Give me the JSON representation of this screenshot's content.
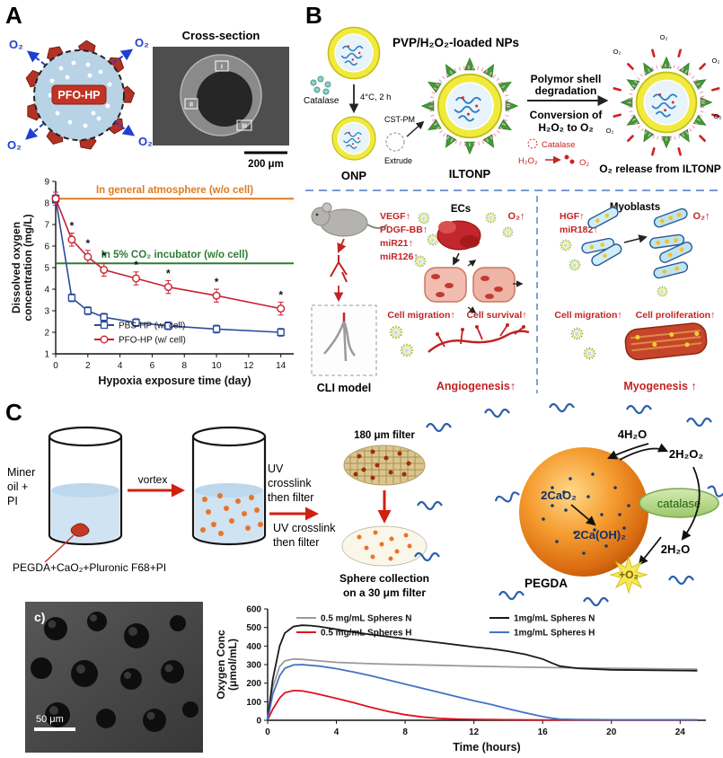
{
  "panels": {
    "a": {
      "label": "A"
    },
    "b": {
      "label": "B"
    },
    "c": {
      "label": "C"
    }
  },
  "panel_a": {
    "sphere_label": "PFO-HP",
    "o2": "O₂",
    "sem_title": "Cross-section",
    "sem_scale": "200 μm",
    "region_1": "I",
    "region_2": "II",
    "region_3": "III"
  },
  "panel_b": {
    "pvp_title": "PVP/H₂O₂-loaded NPs",
    "catalase": "Catalase",
    "condition": "4°C, 2 h",
    "cst_pm": "CST-PM",
    "extrude": "Extrude",
    "onp": "ONP",
    "iltonp": "ILTONP",
    "degrade_1": "Polymor shell",
    "degrade_2": "degradation",
    "convert_1": "Conversion of",
    "convert_2": "H₂O₂ to O₂",
    "catalase_2": "Catalase",
    "h2o2": "H₂O₂",
    "o2": "O₂",
    "o2_small": "O₂",
    "release_label": "O₂ release from ILTONP",
    "cli_model": "CLI model",
    "vegf": "VEGF↑",
    "pdgf": "PDGF-BB↑",
    "mir21": "miR21↑",
    "mir126": "miR126↑",
    "ecs": "ECs",
    "o2_up": "O₂↑",
    "cell_migration": "Cell migration↑",
    "cell_survival": "Cell survival↑",
    "angiogenesis": "Angiogenesis↑",
    "hgf": "HGF↑",
    "mir182": "miR182↑",
    "myoblasts": "Myoblasts",
    "cell_proliferation": "Cell proliferation↑",
    "myogenesis": "Myogenesis ↑"
  },
  "panel_c": {
    "miner_1": "Miner",
    "miner_2": "oil +",
    "miner_3": "PI",
    "mix_label": "PEGDA+CaO₂+Pluronic F68+PI",
    "vortex": "vortex",
    "uv_1": "UV",
    "uv_2": "crosslink",
    "uv_3": "then filter",
    "uv2_1": "UV crosslink",
    "uv2_2": "then filter",
    "filter_180": "180 μm filter",
    "collect_1": "Sphere collection",
    "collect_2": "on a 30 μm filter",
    "h2o_in": "4H₂O",
    "h2o2_out": "2H₂O₂",
    "cao2": "2CaO₂",
    "caoh2": "2Ca(OH)₂",
    "catalase": "catalase",
    "h2o_out": "2H₂O",
    "o2_out": "+O₂",
    "pegda": "PEGDA",
    "sem_label": "c)",
    "sem_scale": "50 μm"
  },
  "chart_data": [
    {
      "id": "dissolved-oxygen-vs-hypoxia-time",
      "type": "line",
      "xlabel": "Hypoxia exposure time (day)",
      "ylabel": "Dissolved oxygen concentration (mg/L)",
      "ylabel_lines": [
        "Dissolved oxygen",
        "concentration (mg/L)"
      ],
      "xlim": [
        0,
        14.8
      ],
      "ylim": [
        1,
        9
      ],
      "xticks": [
        0,
        2,
        4,
        6,
        8,
        10,
        12,
        14
      ],
      "yticks": [
        1,
        2,
        3,
        4,
        5,
        6,
        7,
        8,
        9
      ],
      "grid": false,
      "legend_position": "inside-bottom-left",
      "reference_lines": [
        {
          "y": 8.2,
          "label": "In general atmosphere (w/o cell)",
          "color": "#e07b20"
        },
        {
          "y": 5.2,
          "label": "In 5% CO₂ incubator (w/o cell)",
          "color": "#2e7d32"
        }
      ],
      "series": [
        {
          "name": "PBS-HP (w/ cell)",
          "color": "#2b4b9e",
          "marker": "square",
          "error_y": 0.18,
          "x": [
            0,
            1,
            2,
            3,
            5,
            7,
            10,
            14
          ],
          "y": [
            8.2,
            3.6,
            3.0,
            2.7,
            2.45,
            2.3,
            2.15,
            2.0
          ]
        },
        {
          "name": "PFO-HP (w/ cell)",
          "color": "#c8202e",
          "marker": "circle",
          "error_y": 0.3,
          "stars": "*",
          "x": [
            0,
            1,
            2,
            3,
            5,
            7,
            10,
            14
          ],
          "y": [
            8.2,
            6.3,
            5.5,
            4.9,
            4.5,
            4.1,
            3.7,
            3.1
          ]
        }
      ]
    },
    {
      "id": "oxygen-release-from-spheres",
      "type": "line",
      "xlabel": "Time (hours)",
      "ylabel": "Oxygen Conc (μmol/mL)",
      "ylabel_lines": [
        "Oxygen Conc",
        "(μmol/mL)"
      ],
      "xlim": [
        0,
        25.5
      ],
      "ylim": [
        0,
        600
      ],
      "xticks": [
        0,
        4,
        8,
        12,
        16,
        20,
        24
      ],
      "yticks": [
        0,
        100,
        200,
        300,
        400,
        500,
        600
      ],
      "grid": false,
      "tick_weight": "bold",
      "legend_weight": "bold",
      "legend_position": "top-two-columns",
      "series": [
        {
          "name": "0.5 mg/mL Spheres N",
          "color": "#9a9a9a",
          "width": 1.8,
          "x": [
            0,
            0.3,
            0.7,
            1,
            1.5,
            2,
            3,
            4,
            6,
            8,
            10,
            12,
            14,
            16,
            18,
            20,
            22,
            24,
            25
          ],
          "y": [
            5,
            180,
            290,
            320,
            330,
            328,
            320,
            312,
            305,
            300,
            296,
            292,
            288,
            285,
            282,
            280,
            278,
            276,
            275
          ]
        },
        {
          "name": "1mg/mL Spheres N",
          "color": "#1a1a1a",
          "width": 1.8,
          "x": [
            0,
            0.3,
            0.7,
            1,
            1.5,
            2,
            2.5,
            3,
            4,
            5,
            6,
            8,
            10,
            12,
            13,
            14,
            15,
            16,
            16.5,
            17,
            18,
            20,
            22,
            24,
            25
          ],
          "y": [
            5,
            220,
            400,
            470,
            505,
            512,
            510,
            505,
            490,
            475,
            462,
            440,
            418,
            395,
            385,
            372,
            355,
            330,
            310,
            292,
            280,
            272,
            270,
            268,
            267
          ]
        },
        {
          "name": "0.5 mg/mL Spheres H",
          "color": "#e01020",
          "width": 1.8,
          "x": [
            0,
            0.3,
            0.7,
            1,
            1.5,
            2,
            2.5,
            3,
            4,
            5,
            6,
            7,
            8,
            9,
            10,
            11,
            12,
            14,
            16,
            20,
            25
          ],
          "y": [
            2,
            60,
            120,
            148,
            160,
            158,
            150,
            140,
            118,
            95,
            70,
            48,
            30,
            18,
            10,
            7,
            5,
            3,
            2,
            2,
            2
          ]
        },
        {
          "name": "1mg/mL Spheres H",
          "color": "#4472c4",
          "width": 1.8,
          "x": [
            0,
            0.3,
            0.7,
            1,
            1.5,
            2,
            3,
            4,
            5,
            6,
            8,
            10,
            12,
            13,
            14,
            15,
            16,
            16.5,
            17,
            18,
            20,
            25
          ],
          "y": [
            2,
            140,
            240,
            280,
            298,
            300,
            292,
            278,
            260,
            240,
            195,
            150,
            105,
            85,
            62,
            40,
            20,
            12,
            6,
            4,
            3,
            3
          ]
        }
      ]
    }
  ]
}
